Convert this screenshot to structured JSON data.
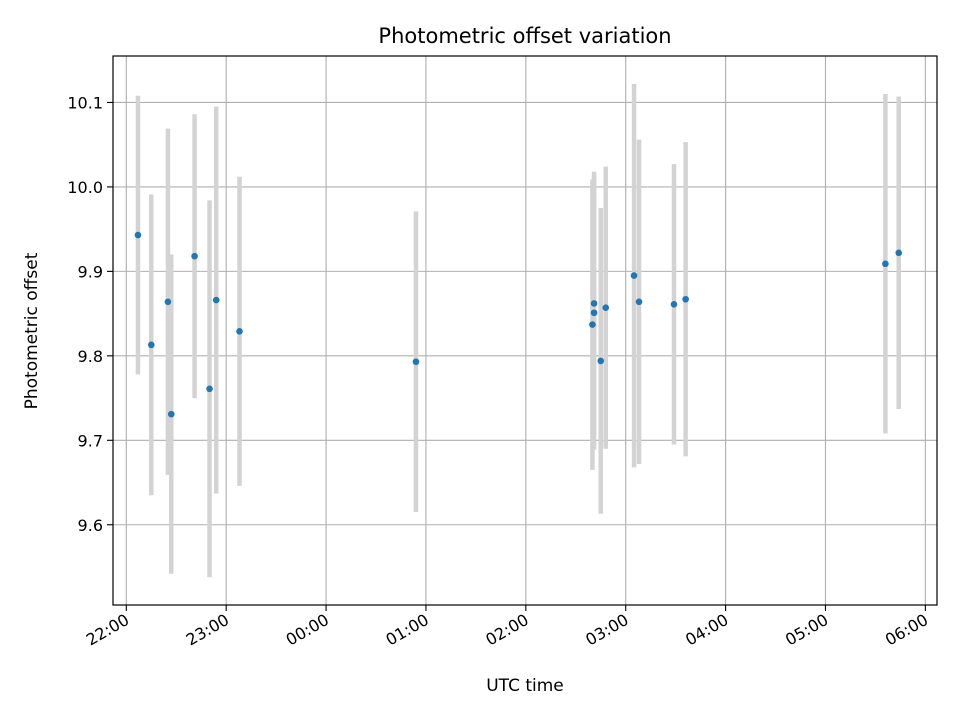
{
  "chart_data": {
    "type": "scatter",
    "title": "Photometric offset variation",
    "xlabel": "UTC time",
    "ylabel": "Photometric offset",
    "grid": true,
    "colors": {
      "point": "#1f77b4",
      "errorbar": "#d3d3d3",
      "grid": "#b0b0b0"
    },
    "x_ticks": [
      "22:00",
      "23:00",
      "00:00",
      "01:00",
      "02:00",
      "03:00",
      "04:00",
      "05:00",
      "06:00"
    ],
    "y_ticks": [
      "9.6",
      "9.7",
      "9.8",
      "9.9",
      "10.0",
      "10.1"
    ],
    "ylim": [
      9.505,
      10.155
    ],
    "xlim": [
      "21:52",
      "06:07"
    ],
    "points": [
      {
        "t": "22:07",
        "y": 9.943,
        "err": 0.165
      },
      {
        "t": "22:15",
        "y": 9.813,
        "err": 0.178
      },
      {
        "t": "22:25",
        "y": 9.864,
        "err": 0.205
      },
      {
        "t": "22:27",
        "y": 9.731,
        "err": 0.189
      },
      {
        "t": "22:41",
        "y": 9.918,
        "err": 0.168
      },
      {
        "t": "22:50",
        "y": 9.761,
        "err": 0.223
      },
      {
        "t": "22:54",
        "y": 9.866,
        "err": 0.229
      },
      {
        "t": "23:08",
        "y": 9.829,
        "err": 0.183
      },
      {
        "t": "00:54",
        "y": 9.793,
        "err": 0.178
      },
      {
        "t": "02:40",
        "y": 9.837,
        "err": 0.172
      },
      {
        "t": "02:41",
        "y": 9.862,
        "err": 0.156
      },
      {
        "t": "02:41",
        "y": 9.851,
        "err": 0.162
      },
      {
        "t": "02:45",
        "y": 9.794,
        "err": 0.181
      },
      {
        "t": "02:48",
        "y": 9.857,
        "err": 0.167
      },
      {
        "t": "03:05",
        "y": 9.895,
        "err": 0.227
      },
      {
        "t": "03:08",
        "y": 9.864,
        "err": 0.192
      },
      {
        "t": "03:29",
        "y": 9.861,
        "err": 0.166
      },
      {
        "t": "03:36",
        "y": 9.867,
        "err": 0.186
      },
      {
        "t": "05:36",
        "y": 9.909,
        "err": 0.201
      },
      {
        "t": "05:44",
        "y": 9.922,
        "err": 0.185
      }
    ]
  }
}
